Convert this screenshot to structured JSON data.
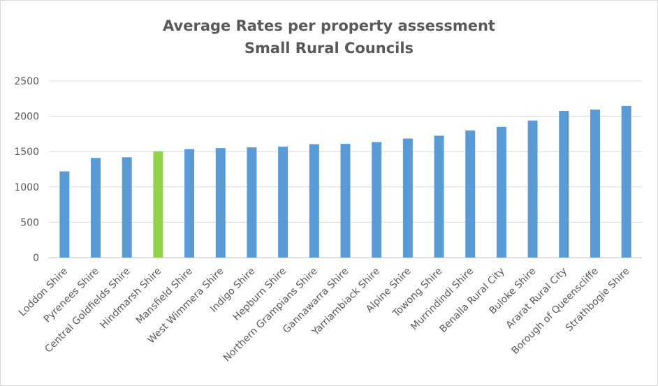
{
  "chart_data": {
    "type": "bar",
    "title_line1": "Average Rates per property assessment",
    "title_line2": "Small Rural Councils",
    "xlabel": "",
    "ylabel": "",
    "ylim": [
      0,
      2500
    ],
    "yticks": [
      "0",
      "500",
      "1000",
      "1500",
      "2000",
      "2500"
    ],
    "grid": true,
    "legend": "none",
    "categories": [
      "Loddon Shire",
      "Pyrenees Shire",
      "Central Goldfields Shire",
      "Hindmarsh Shire",
      "Mansfield Shire",
      "West Wimmera Shire",
      "Indigo Shire",
      "Hepburn Shire",
      "Northern Grampians Shire",
      "Gannawarra Shire",
      "Yarriambiack Shire",
      "Alpine Shire",
      "Towong Shire",
      "Murrindindi Shire",
      "Benalla Rural City",
      "Buloke Shire",
      "Ararat Rural City",
      "Borough of Queenscliffe",
      "Strathbogie Shire"
    ],
    "values": [
      1220,
      1410,
      1420,
      1505,
      1535,
      1550,
      1560,
      1570,
      1605,
      1610,
      1635,
      1685,
      1725,
      1800,
      1850,
      1940,
      2075,
      2095,
      2145
    ],
    "colors": {
      "default": "#5b9bd5",
      "highlight": "#92d050",
      "gridline": "#d9d9d9",
      "axis": "#bfbfbf",
      "text": "#595959"
    },
    "highlight_category": "Hindmarsh Shire"
  }
}
